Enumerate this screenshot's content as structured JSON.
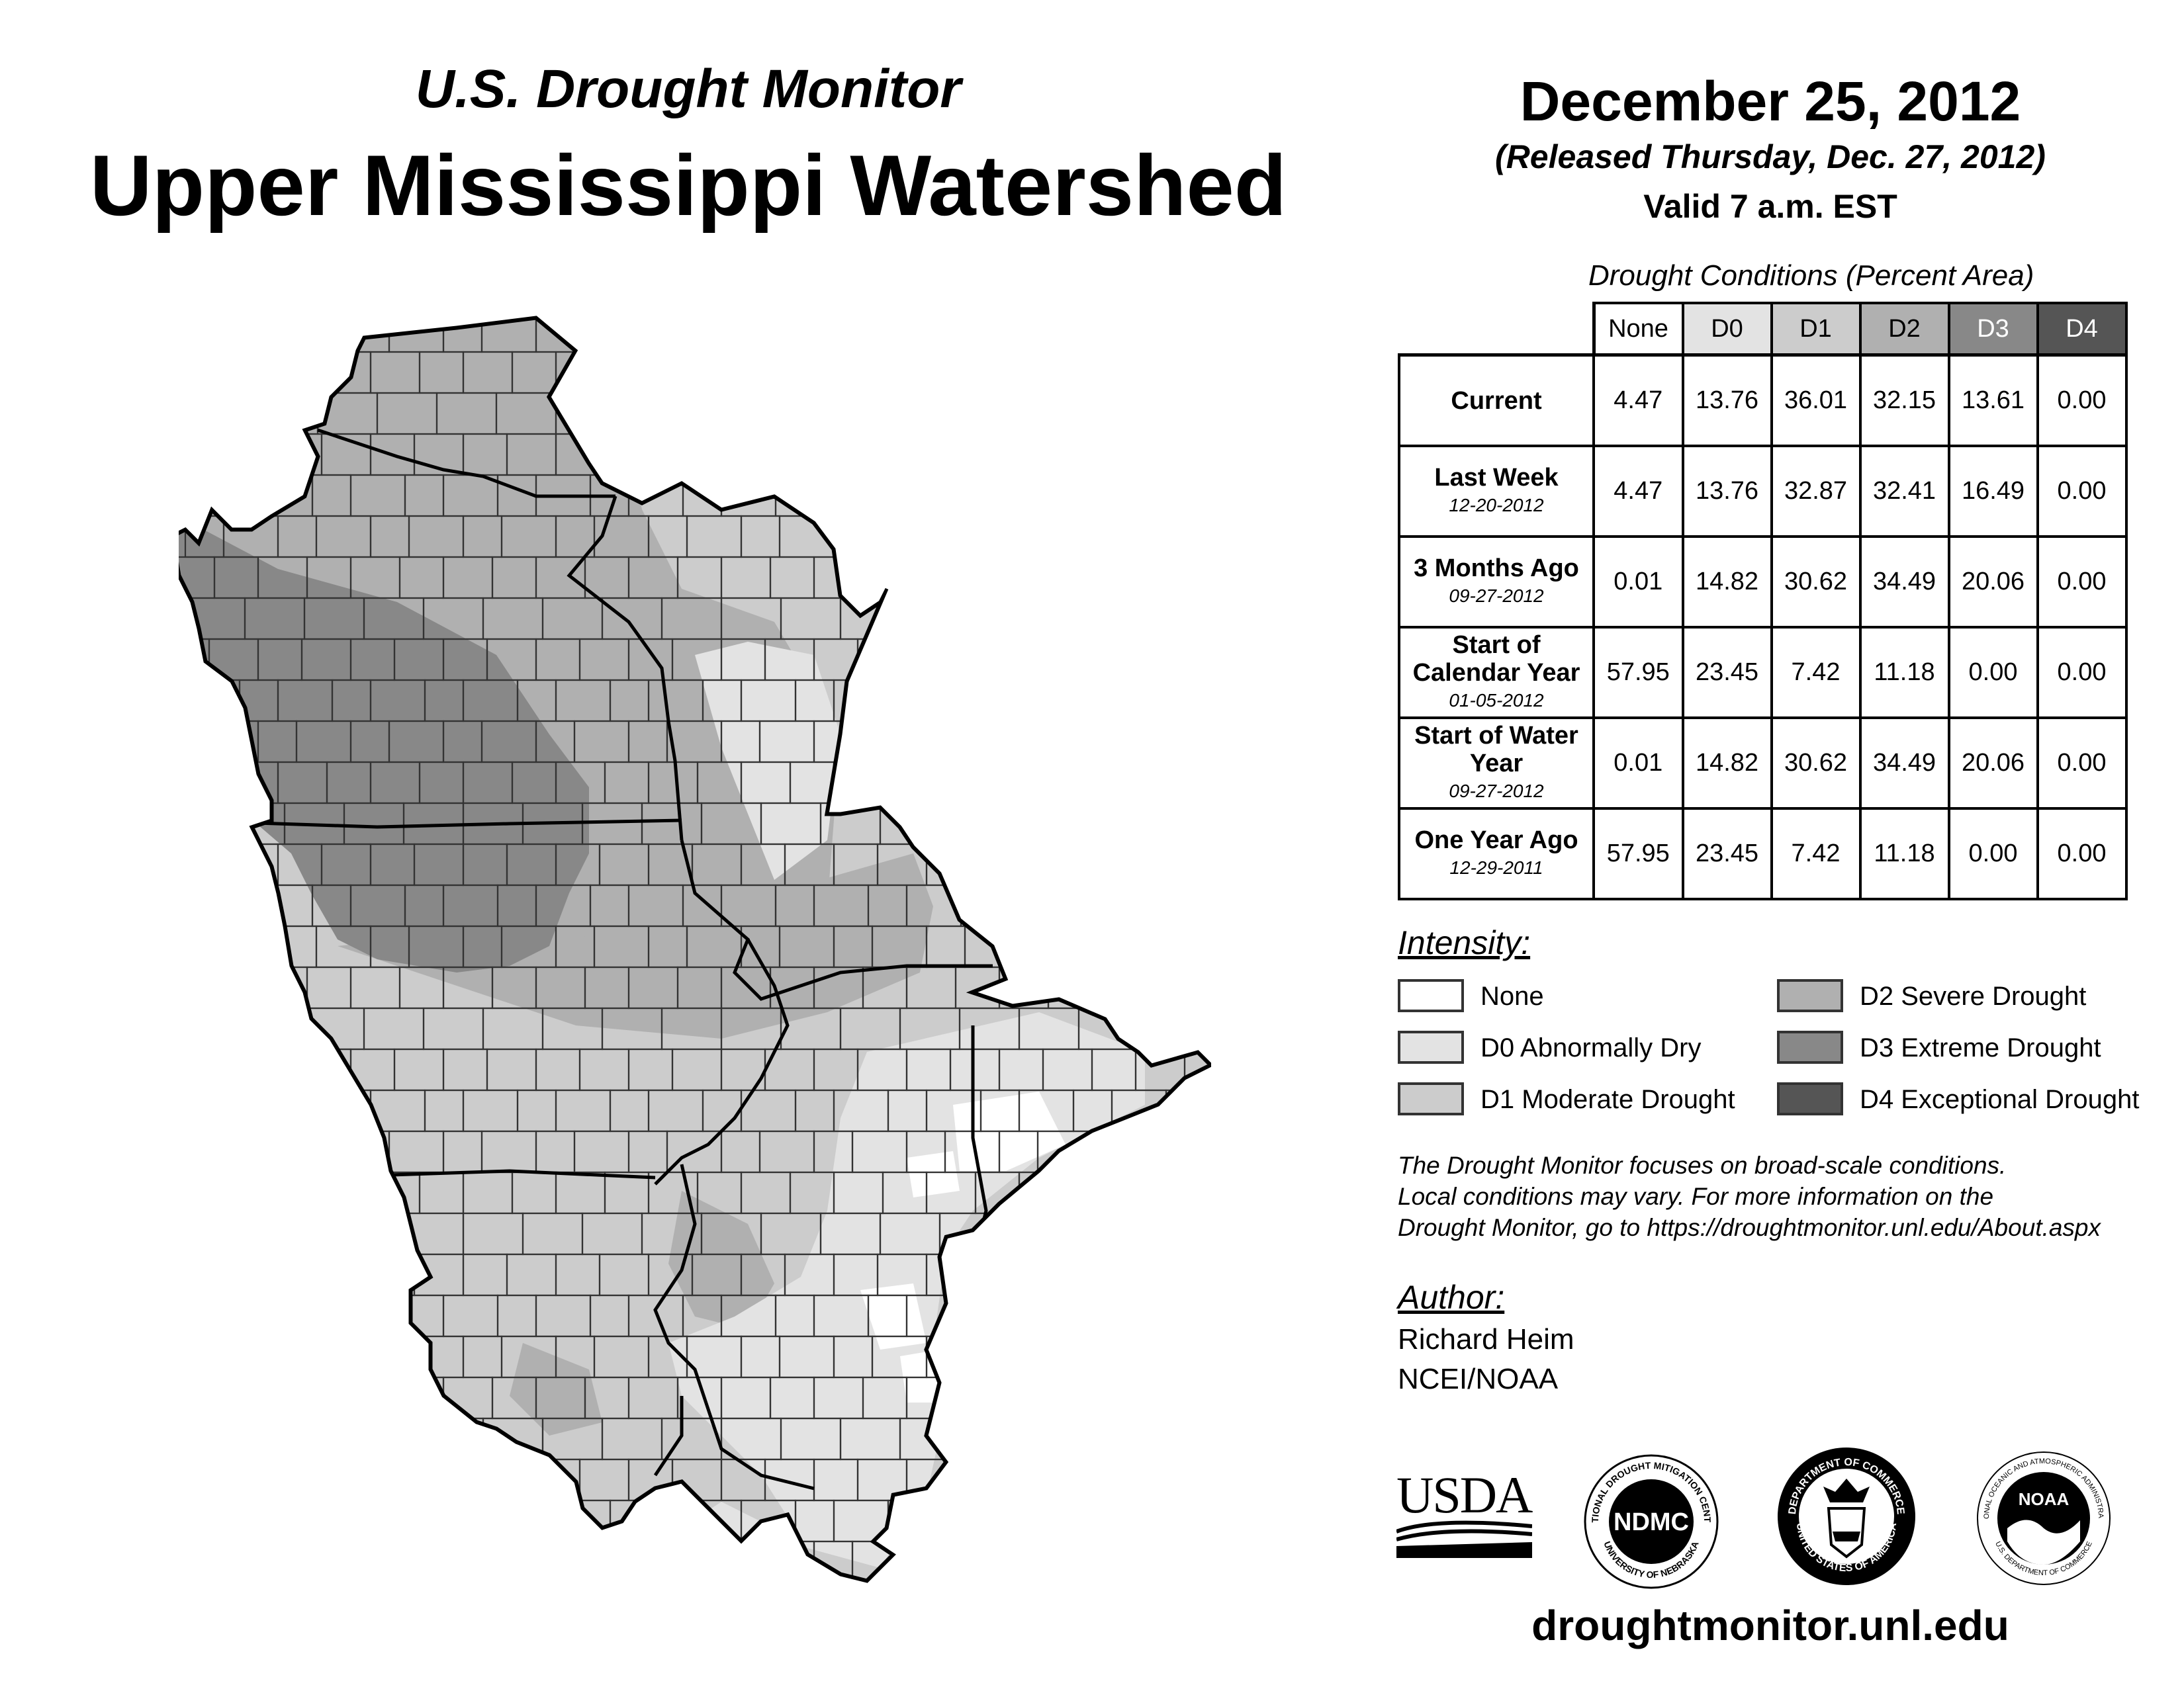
{
  "header": {
    "super_title": "U.S. Drought Monitor",
    "region_title": "Upper Mississippi Watershed",
    "map_date": "December 25, 2012",
    "released": "(Released Thursday, Dec. 27, 2012)",
    "valid": "Valid 7 a.m. EST"
  },
  "conditions": {
    "title": "Drought Conditions (Percent Area)",
    "columns": [
      "None",
      "D0",
      "D1",
      "D2",
      "D3",
      "D4"
    ],
    "column_colors": [
      "#ffffff",
      "#e3e3e3",
      "#cccccc",
      "#b0b0b0",
      "#888888",
      "#555555"
    ],
    "column_text_colors": [
      "#000000",
      "#000000",
      "#000000",
      "#000000",
      "#ffffff",
      "#ffffff"
    ],
    "rows": [
      {
        "label": "Current",
        "date": "",
        "values": [
          "4.47",
          "13.76",
          "36.01",
          "32.15",
          "13.61",
          "0.00"
        ]
      },
      {
        "label": "Last Week",
        "date": "12-20-2012",
        "values": [
          "4.47",
          "13.76",
          "32.87",
          "32.41",
          "16.49",
          "0.00"
        ]
      },
      {
        "label": "3 Months Ago",
        "date": "09-27-2012",
        "values": [
          "0.01",
          "14.82",
          "30.62",
          "34.49",
          "20.06",
          "0.00"
        ]
      },
      {
        "label": "Start of Calendar Year",
        "date": "01-05-2012",
        "values": [
          "57.95",
          "23.45",
          "7.42",
          "11.18",
          "0.00",
          "0.00"
        ]
      },
      {
        "label": "Start of Water Year",
        "date": "09-27-2012",
        "values": [
          "0.01",
          "14.82",
          "30.62",
          "34.49",
          "20.06",
          "0.00"
        ]
      },
      {
        "label": "One Year Ago",
        "date": "12-29-2011",
        "values": [
          "57.95",
          "23.45",
          "7.42",
          "11.18",
          "0.00",
          "0.00"
        ]
      }
    ]
  },
  "legend": {
    "title": "Intensity:",
    "items": [
      {
        "label": "None",
        "color": "#ffffff"
      },
      {
        "label": "D0 Abnormally Dry",
        "color": "#e3e3e3"
      },
      {
        "label": "D1 Moderate Drought",
        "color": "#cccccc"
      },
      {
        "label": "D2 Severe Drought",
        "color": "#b0b0b0"
      },
      {
        "label": "D3 Extreme Drought",
        "color": "#888888"
      },
      {
        "label": "D4 Exceptional Drought",
        "color": "#555555"
      }
    ]
  },
  "note": {
    "line1": "The Drought Monitor focuses on broad-scale conditions.",
    "line2": "Local conditions may vary. For more information on the",
    "line3": "Drought Monitor, go to https://droughtmonitor.unl.edu/About.aspx"
  },
  "author": {
    "title": "Author:",
    "name": "Richard Heim",
    "org": "NCEI/NOAA"
  },
  "logos": {
    "usda": "USDA",
    "ndmc": "NDMC",
    "ndmc_top": "NATIONAL DROUGHT MITIGATION CENTER",
    "ndmc_bottom": "UNIVERSITY OF NEBRASKA",
    "doc_top": "DEPARTMENT OF COMMERCE",
    "doc_bottom": "UNITED STATES OF AMERICA",
    "noaa": "NOAA",
    "noaa_ring": "NATIONAL OCEANIC AND ATMOSPHERIC ADMINISTRATION",
    "noaa_ring_bottom": "U.S. DEPARTMENT OF COMMERCE"
  },
  "footer": {
    "url": "droughtmonitor.unl.edu"
  }
}
